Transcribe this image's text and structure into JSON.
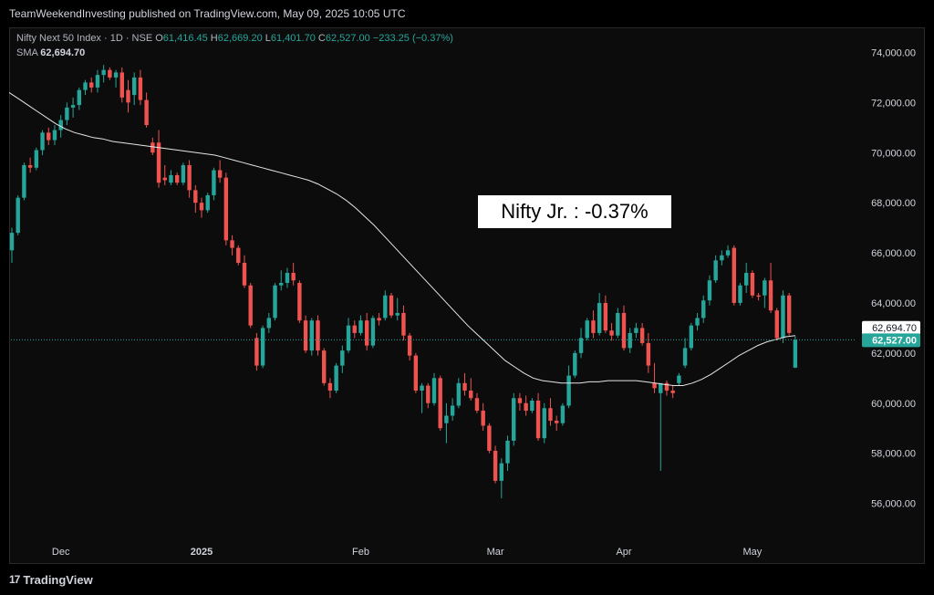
{
  "header": {
    "published": "TeamWeekendInvesting published on TradingView.com, May 09, 2025 10:05 UTC"
  },
  "legend": {
    "symbol": "Nifty Next 50 Index · 1D · NSE",
    "o_label": "O",
    "o_value": "61,416.45",
    "h_label": "H",
    "h_value": "62,669.20",
    "l_label": "L",
    "l_value": "61,401.70",
    "c_label": "C",
    "c_value": "62,527.00",
    "change": "−233.25 (−0.37%)",
    "sma_label": "SMA",
    "sma_value": "62,694.70"
  },
  "annotation": "Nifty Jr. : -0.37%",
  "footer": {
    "brand": "TradingView",
    "logo_text": "17"
  },
  "colors": {
    "up": "#26a69a",
    "down": "#ef5350",
    "sma": "#e6e6e6",
    "background": "#0c0c0c",
    "annotation_bg": "#ffffff"
  },
  "chart_data": {
    "type": "candlestick",
    "y_axis": {
      "min": 54600,
      "max": 75000,
      "ticks": [
        "74,000.00",
        "72,000.00",
        "70,000.00",
        "68,000.00",
        "66,000.00",
        "64,000.00",
        "62,000.00",
        "60,000.00",
        "58,000.00",
        "56,000.00"
      ]
    },
    "x_axis": {
      "labels": [
        "Dec",
        "2025",
        "Feb",
        "Mar",
        "Apr",
        "May"
      ]
    },
    "price_labels": {
      "sma": "62,694.70",
      "last": "62,527.00"
    },
    "candles": [
      [
        66100,
        67000,
        65600,
        66800
      ],
      [
        66800,
        68300,
        66700,
        68200
      ],
      [
        68200,
        69600,
        68100,
        69500
      ],
      [
        69500,
        69800,
        69200,
        69400
      ],
      [
        69400,
        70200,
        69300,
        70100
      ],
      [
        70100,
        70900,
        69900,
        70800
      ],
      [
        70800,
        71000,
        70300,
        70500
      ],
      [
        70500,
        71100,
        70300,
        70900
      ],
      [
        70900,
        71500,
        70600,
        71300
      ],
      [
        71300,
        72000,
        71100,
        71800
      ],
      [
        71800,
        72200,
        71400,
        71900
      ],
      [
        71900,
        72600,
        71700,
        72500
      ],
      [
        72500,
        72900,
        72300,
        72800
      ],
      [
        72800,
        73000,
        72400,
        72600
      ],
      [
        72600,
        73300,
        72400,
        73100
      ],
      [
        73100,
        73500,
        72800,
        73300
      ],
      [
        73300,
        73400,
        72900,
        73000
      ],
      [
        73000,
        73300,
        72600,
        73200
      ],
      [
        73200,
        73400,
        72000,
        72200
      ],
      [
        72500,
        72900,
        71600,
        72000
      ],
      [
        72300,
        73200,
        71900,
        73000
      ],
      [
        73000,
        73300,
        71900,
        72100
      ],
      [
        72100,
        72400,
        71000,
        71100
      ],
      [
        70400,
        70600,
        69900,
        70000
      ],
      [
        70400,
        70900,
        68600,
        68800
      ],
      [
        69000,
        69500,
        68700,
        68900
      ],
      [
        68800,
        69300,
        68700,
        69100
      ],
      [
        69100,
        69200,
        68700,
        68800
      ],
      [
        68800,
        69600,
        68700,
        69500
      ],
      [
        69500,
        69700,
        68200,
        68500
      ],
      [
        68500,
        68700,
        67600,
        68000
      ],
      [
        68000,
        68200,
        67400,
        67700
      ],
      [
        67700,
        68400,
        67600,
        68300
      ],
      [
        68300,
        69400,
        68100,
        69300
      ],
      [
        69300,
        69700,
        68800,
        69000
      ],
      [
        69000,
        69200,
        66300,
        66500
      ],
      [
        66500,
        66700,
        65900,
        66200
      ],
      [
        66200,
        66300,
        65500,
        65600
      ],
      [
        65600,
        65900,
        64600,
        64700
      ],
      [
        64700,
        64800,
        63000,
        63100
      ],
      [
        62600,
        62800,
        61300,
        61500
      ],
      [
        61500,
        63100,
        61400,
        63000
      ],
      [
        63000,
        63600,
        62800,
        63400
      ],
      [
        63400,
        64800,
        63300,
        64700
      ],
      [
        64700,
        65300,
        64500,
        64800
      ],
      [
        64800,
        65400,
        64600,
        65200
      ],
      [
        65200,
        65600,
        64700,
        64900
      ],
      [
        64800,
        64900,
        63200,
        63300
      ],
      [
        63300,
        63500,
        62000,
        62100
      ],
      [
        62100,
        63400,
        61900,
        63300
      ],
      [
        63300,
        63500,
        61900,
        62100
      ],
      [
        62100,
        62200,
        60700,
        60800
      ],
      [
        60800,
        61000,
        60200,
        60500
      ],
      [
        60500,
        61600,
        60400,
        61500
      ],
      [
        61500,
        62300,
        61200,
        62100
      ],
      [
        62100,
        63400,
        62000,
        63100
      ],
      [
        63100,
        63300,
        62600,
        62800
      ],
      [
        62800,
        63500,
        62700,
        63300
      ],
      [
        63300,
        63600,
        62100,
        62300
      ],
      [
        62300,
        63500,
        62200,
        63400
      ],
      [
        63400,
        63600,
        63100,
        63300
      ],
      [
        63400,
        64500,
        63300,
        64300
      ],
      [
        64300,
        64400,
        63400,
        63500
      ],
      [
        63500,
        64200,
        63300,
        63600
      ],
      [
        63600,
        63900,
        62500,
        62700
      ],
      [
        62700,
        62800,
        61700,
        61900
      ],
      [
        61900,
        62000,
        60400,
        60500
      ],
      [
        60500,
        60800,
        59600,
        60700
      ],
      [
        60700,
        60800,
        59800,
        60000
      ],
      [
        60000,
        61200,
        59900,
        61000
      ],
      [
        61000,
        61100,
        58900,
        59000
      ],
      [
        59200,
        60000,
        58400,
        59500
      ],
      [
        59500,
        60200,
        59300,
        59900
      ],
      [
        59900,
        61000,
        59800,
        60800
      ],
      [
        60800,
        61200,
        60300,
        60500
      ],
      [
        60500,
        61000,
        60100,
        60200
      ],
      [
        60200,
        60400,
        59600,
        59700
      ],
      [
        59700,
        60000,
        58900,
        59100
      ],
      [
        59100,
        59200,
        58000,
        58100
      ],
      [
        58100,
        58300,
        56800,
        56900
      ],
      [
        56900,
        57800,
        56200,
        57600
      ],
      [
        57600,
        58700,
        57300,
        58500
      ],
      [
        58500,
        60400,
        58300,
        60200
      ],
      [
        60200,
        60400,
        59700,
        60000
      ],
      [
        60000,
        60300,
        59500,
        59700
      ],
      [
        59700,
        60200,
        59600,
        60100
      ],
      [
        60100,
        60400,
        58500,
        58600
      ],
      [
        58600,
        60000,
        58400,
        59800
      ],
      [
        59800,
        60200,
        59100,
        59300
      ],
      [
        59300,
        59500,
        58900,
        59200
      ],
      [
        59200,
        60000,
        59100,
        59900
      ],
      [
        59900,
        61500,
        59800,
        61100
      ],
      [
        61100,
        62100,
        61000,
        62000
      ],
      [
        62000,
        63000,
        61800,
        62600
      ],
      [
        62600,
        63400,
        62500,
        63300
      ],
      [
        63300,
        63700,
        62600,
        62800
      ],
      [
        62800,
        64400,
        62700,
        64000
      ],
      [
        64000,
        64300,
        62800,
        62900
      ],
      [
        62900,
        63200,
        62500,
        62700
      ],
      [
        62700,
        63800,
        62600,
        63600
      ],
      [
        63600,
        63900,
        62100,
        62200
      ],
      [
        62200,
        63000,
        62000,
        62800
      ],
      [
        62800,
        63200,
        62600,
        63000
      ],
      [
        63000,
        63200,
        62300,
        62400
      ],
      [
        62400,
        62800,
        61200,
        61500
      ],
      [
        60800,
        61600,
        60400,
        60600
      ],
      [
        60400,
        60600,
        57300,
        60800
      ],
      [
        60800,
        60900,
        60300,
        60500
      ],
      [
        60500,
        60700,
        60200,
        60400
      ],
      [
        60800,
        61200,
        60700,
        61100
      ],
      [
        61500,
        62600,
        61400,
        62200
      ],
      [
        62200,
        63200,
        62100,
        63100
      ],
      [
        63100,
        63600,
        62900,
        63400
      ],
      [
        63400,
        64300,
        63200,
        64100
      ],
      [
        64100,
        65100,
        63900,
        64900
      ],
      [
        64900,
        65900,
        64800,
        65700
      ],
      [
        65700,
        66100,
        65500,
        65900
      ],
      [
        65900,
        66300,
        65800,
        66100
      ],
      [
        66200,
        66300,
        63900,
        64000
      ],
      [
        64000,
        64800,
        63900,
        64700
      ],
      [
        64700,
        65600,
        64400,
        65200
      ],
      [
        65200,
        65300,
        64200,
        64300
      ],
      [
        64300,
        64400,
        64100,
        64250
      ],
      [
        64300,
        65000,
        63800,
        64900
      ],
      [
        64900,
        65600,
        63600,
        63700
      ],
      [
        63700,
        63800,
        62500,
        62600
      ],
      [
        62600,
        64500,
        62400,
        64300
      ],
      [
        64300,
        64400,
        62700,
        62800
      ],
      [
        61416,
        62669,
        61401,
        62527
      ]
    ],
    "sma": [
      72400,
      72150,
      71900,
      71650,
      71400,
      71150,
      70950,
      70800,
      70700,
      70600,
      70550,
      70450,
      70400,
      70350,
      70300,
      70250,
      70200,
      70150,
      70100,
      70050,
      70000,
      69950,
      69900,
      69800,
      69700,
      69600,
      69500,
      69400,
      69300,
      69200,
      69100,
      69000,
      68900,
      68750,
      68550,
      68350,
      68100,
      67800,
      67450,
      67100,
      66700,
      66300,
      65900,
      65500,
      65100,
      64700,
      64300,
      63900,
      63500,
      63100,
      62750,
      62400,
      62050,
      61700,
      61450,
      61200,
      61000,
      60900,
      60850,
      60800,
      60800,
      60800,
      60850,
      60850,
      60900,
      60900,
      60900,
      60900,
      60850,
      60800,
      60750,
      60700,
      60700,
      60800,
      60950,
      61150,
      61400,
      61650,
      61900,
      62100,
      62300,
      62450,
      62550,
      62650,
      62695
    ]
  }
}
